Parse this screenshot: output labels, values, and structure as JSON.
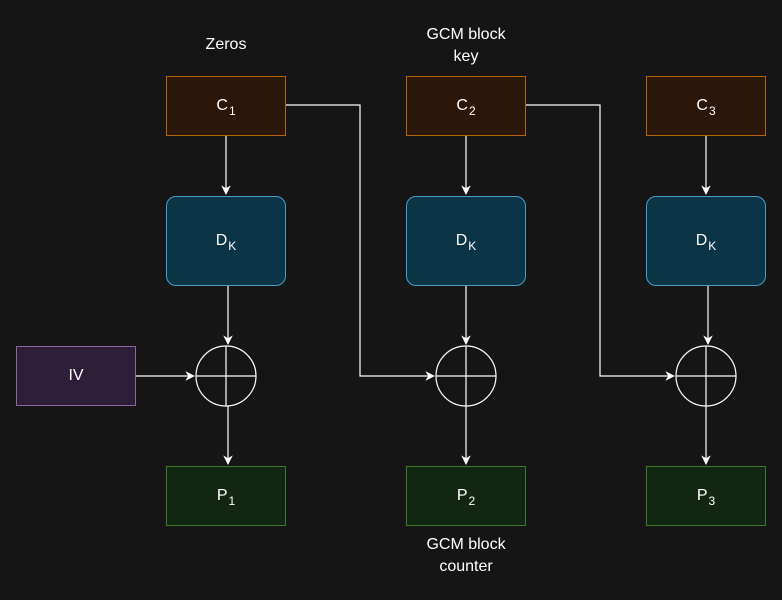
{
  "colors": {
    "background": "#151515",
    "ciphertext_fill": "#2a1707",
    "ciphertext_stroke": "#b46504",
    "decrypt_fill": "#0b3447",
    "decrypt_stroke": "#4a9ccb",
    "plaintext_fill": "#122612",
    "plaintext_stroke": "#3d7a2f",
    "iv_fill": "#2d1f38",
    "iv_stroke": "#8a6a9e",
    "line": "#ffffff"
  },
  "labels": {
    "zeros": "Zeros",
    "gcm_key_line1": "GCM block",
    "gcm_key_line2": "key",
    "gcm_counter_line1": "GCM block",
    "gcm_counter_line2": "counter"
  },
  "iv": {
    "label": "IV"
  },
  "blocks": [
    {
      "cipher": "C",
      "cipher_sub": "1",
      "decrypt": "D",
      "decrypt_sub": "K",
      "plain": "P",
      "plain_sub": "1"
    },
    {
      "cipher": "C",
      "cipher_sub": "2",
      "decrypt": "D",
      "decrypt_sub": "K",
      "plain": "P",
      "plain_sub": "2"
    },
    {
      "cipher": "C",
      "cipher_sub": "3",
      "decrypt": "D",
      "decrypt_sub": "K",
      "plain": "P",
      "plain_sub": "3"
    }
  ],
  "icons": {
    "xor": "xor-circle-plus-icon",
    "arrow": "arrowhead-icon"
  }
}
